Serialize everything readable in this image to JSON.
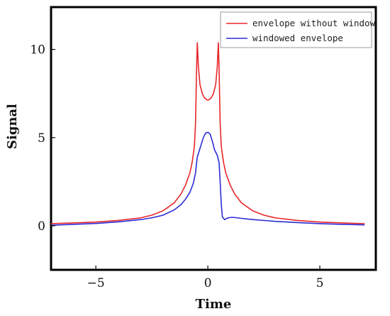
{
  "chart_data": {
    "type": "line",
    "title": "",
    "xlabel": "Time",
    "ylabel": "Signal",
    "xlim": [
      -7,
      7.5
    ],
    "ylim": [
      -2.5,
      12.4
    ],
    "xticks": [
      -5,
      0,
      5
    ],
    "xtick_labels": [
      "−5",
      "0",
      "5"
    ],
    "yticks": [
      0,
      5,
      10
    ],
    "ytick_labels": [
      "0",
      "5",
      "10"
    ],
    "grid": false,
    "legend_position": "top-right",
    "series": [
      {
        "name": "envelope without window",
        "color": "#e8262a",
        "x": [
          -7,
          -6,
          -5,
          -4,
          -3,
          -2.5,
          -2,
          -1.5,
          -1.2,
          -1,
          -0.8,
          -0.7,
          -0.6,
          -0.55,
          -0.5,
          -0.47,
          -0.42,
          -0.35,
          -0.25,
          -0.15,
          -0.05,
          0,
          0.05,
          0.15,
          0.25,
          0.35,
          0.42,
          0.47,
          0.5,
          0.55,
          0.6,
          0.7,
          0.8,
          1,
          1.2,
          1.5,
          2,
          2.5,
          3,
          4,
          5,
          6,
          7
        ],
        "y": [
          0.12,
          0.16,
          0.21,
          0.3,
          0.45,
          0.6,
          0.85,
          1.3,
          1.8,
          2.3,
          3.0,
          3.6,
          4.5,
          5.8,
          9.0,
          10.4,
          9.0,
          8.0,
          7.5,
          7.25,
          7.15,
          7.13,
          7.15,
          7.25,
          7.5,
          8.0,
          9.0,
          10.4,
          9.0,
          5.8,
          4.5,
          3.6,
          3.0,
          2.3,
          1.8,
          1.3,
          0.85,
          0.6,
          0.45,
          0.3,
          0.21,
          0.16,
          0.12
        ]
      },
      {
        "name": "windowed envelope",
        "color": "#2b2bd6",
        "x": [
          -7,
          -6,
          -5,
          -4,
          -3,
          -2.5,
          -2,
          -1.5,
          -1.2,
          -1,
          -0.8,
          -0.65,
          -0.55,
          -0.5,
          -0.47,
          -0.42,
          -0.3,
          -0.2,
          -0.1,
          0,
          0.1,
          0.2,
          0.3,
          0.42,
          0.5,
          0.55,
          0.6,
          0.65,
          0.75,
          0.9,
          1.1,
          1.5,
          2,
          3,
          4,
          5,
          6,
          7
        ],
        "y": [
          0.03,
          0.08,
          0.13,
          0.22,
          0.35,
          0.45,
          0.6,
          0.9,
          1.2,
          1.5,
          1.9,
          2.4,
          3.0,
          3.6,
          3.9,
          4.1,
          4.6,
          5.0,
          5.25,
          5.3,
          5.2,
          4.8,
          4.3,
          4.0,
          3.6,
          2.5,
          1.2,
          0.5,
          0.35,
          0.45,
          0.48,
          0.42,
          0.35,
          0.25,
          0.18,
          0.12,
          0.08,
          0.05
        ]
      }
    ]
  }
}
